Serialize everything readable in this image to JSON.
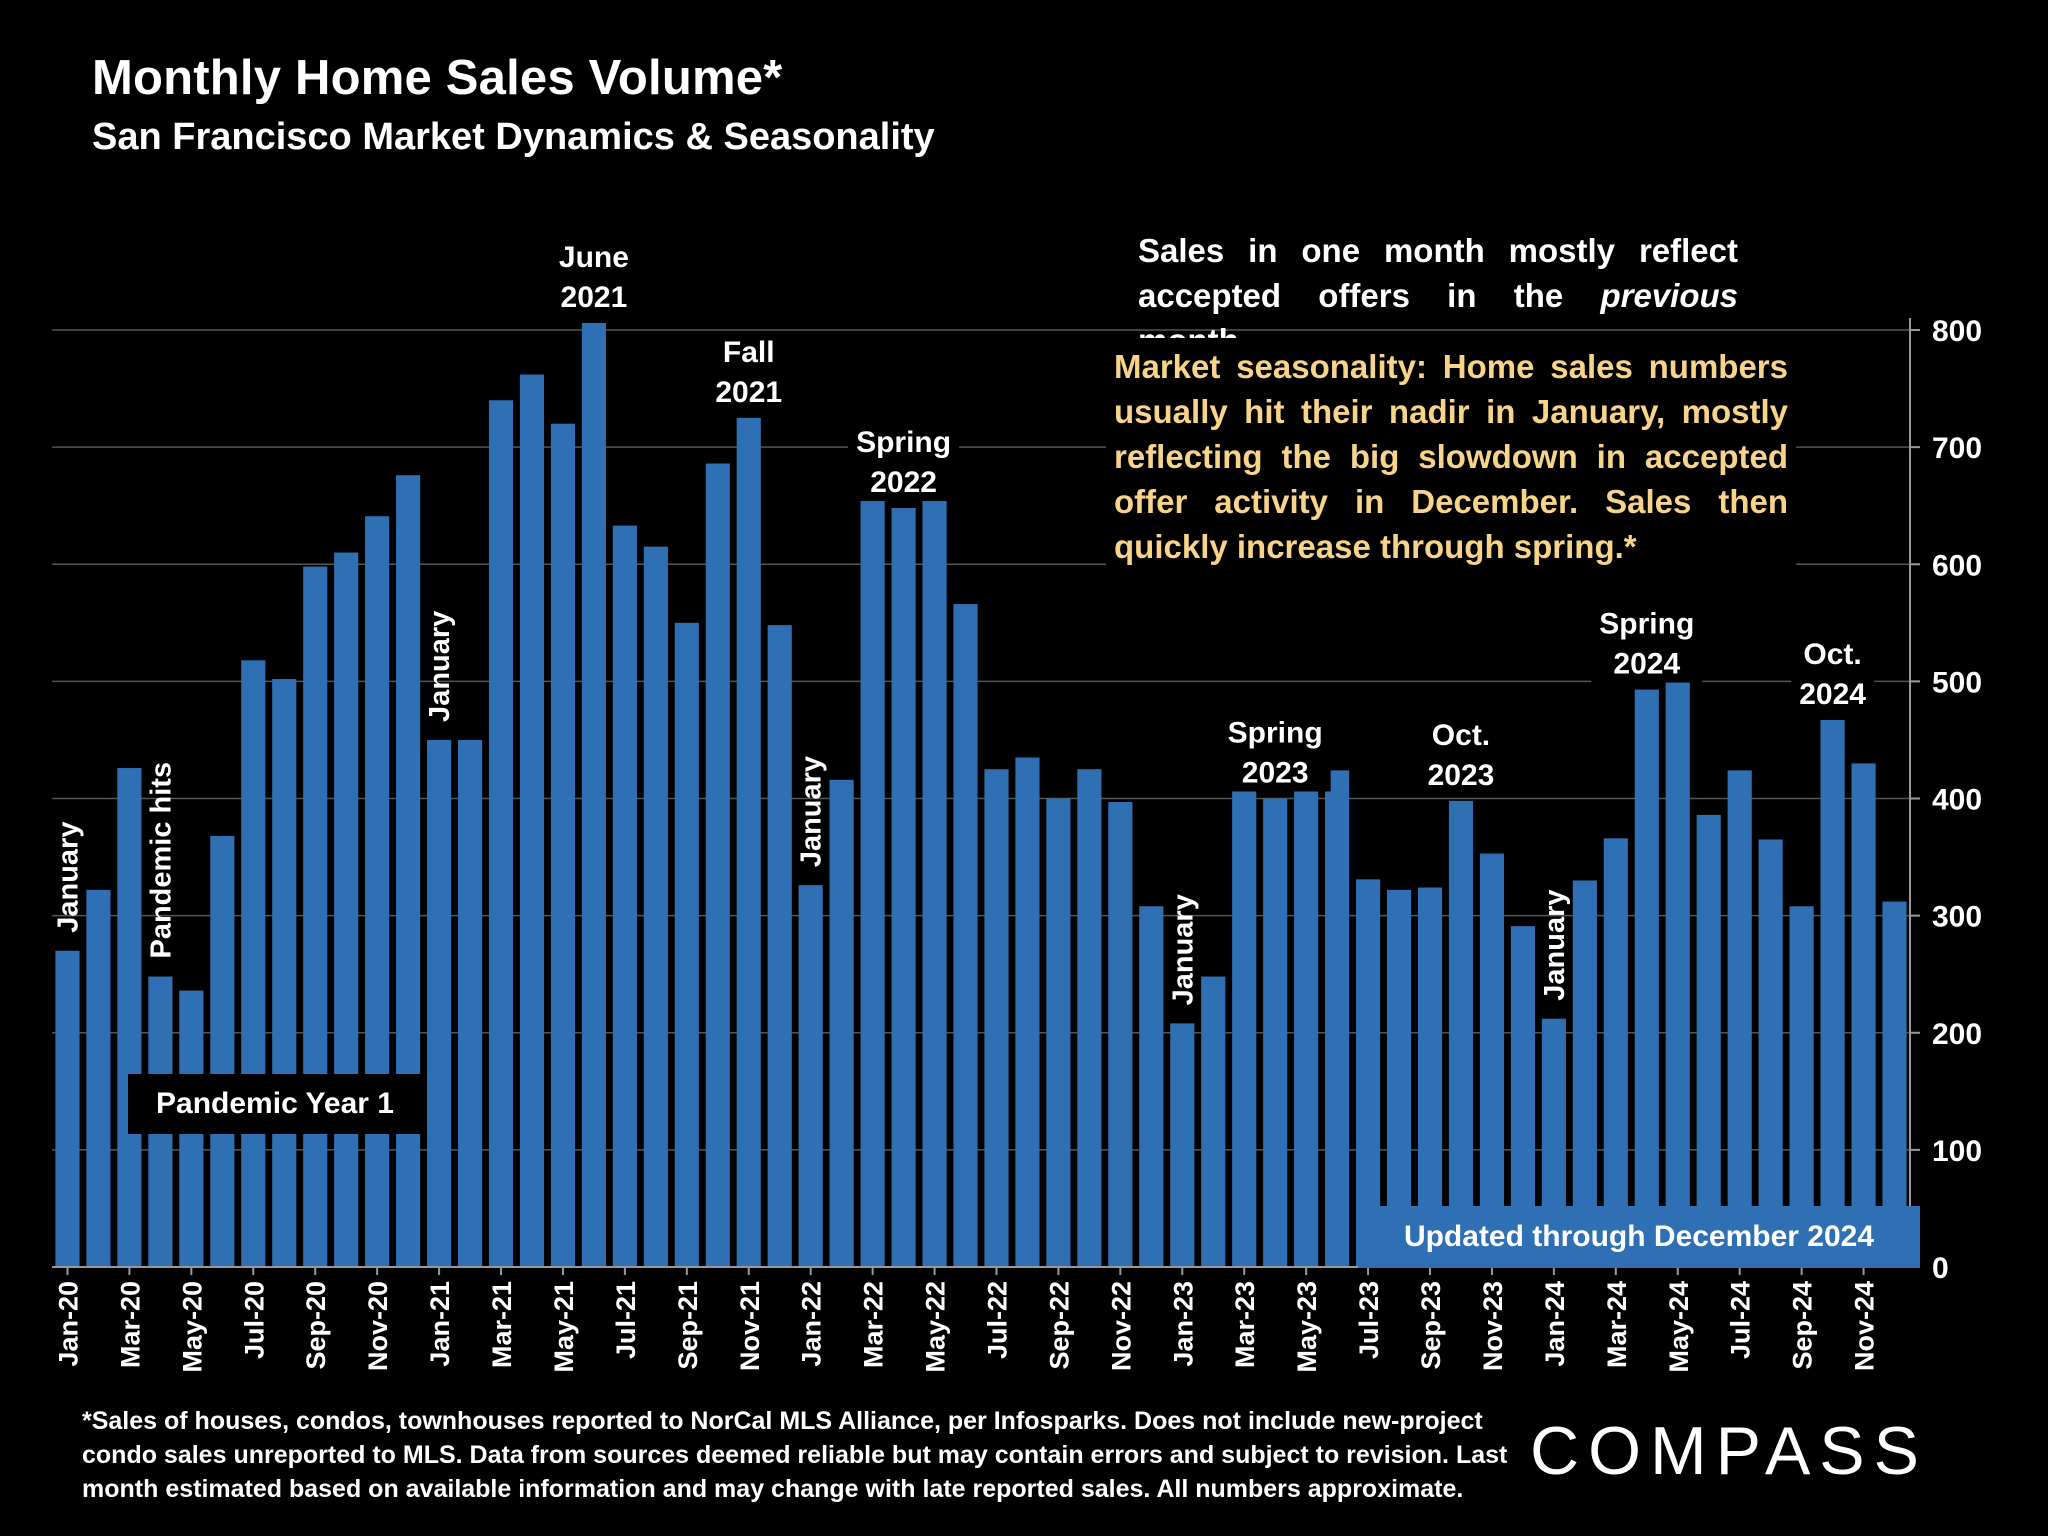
{
  "header": {
    "title": "Monthly Home Sales Volume*",
    "subtitle": "San Francisco Market Dynamics & Seasonality"
  },
  "notes": {
    "lag_pre": "Sales in one month mostly reflect accepted offers in the ",
    "lag_em": "previous",
    "lag_post": " month.",
    "seasonality": "Market seasonality: Home sales numbers usually hit their nadir in January, mostly reflecting the big slowdown in accepted offer activity in December. Sales then quickly increase through spring.*",
    "pandemic_box": "Pandemic Year 1",
    "updated_box": "Updated through December 2024"
  },
  "footnote": "*Sales of houses, condos, townhouses reported to NorCal MLS Alliance, per Infosparks. Does not include new-project condo sales unreported to MLS. Data from sources deemed reliable but may contain errors and subject to revision. Last month estimated based on available information and may change with late reported sales. All numbers approximate.",
  "brand": {
    "logo_text": "COMPASS"
  },
  "colors": {
    "bar": "#2f6fb3",
    "background": "#000000",
    "text": "#ffffff",
    "highlight": "#f7d48a",
    "grid": "#555555"
  },
  "chart_data": {
    "type": "bar",
    "title": "Monthly Home Sales Volume*",
    "ylim": [
      0,
      800
    ],
    "yticks": [
      0,
      100,
      200,
      300,
      400,
      500,
      600,
      700,
      800
    ],
    "y_axis_side": "right",
    "categories": [
      "Jan-20",
      "Feb-20",
      "Mar-20",
      "Apr-20",
      "May-20",
      "Jun-20",
      "Jul-20",
      "Aug-20",
      "Sep-20",
      "Oct-20",
      "Nov-20",
      "Dec-20",
      "Jan-21",
      "Feb-21",
      "Mar-21",
      "Apr-21",
      "May-21",
      "Jun-21",
      "Jul-21",
      "Aug-21",
      "Sep-21",
      "Oct-21",
      "Nov-21",
      "Dec-21",
      "Jan-22",
      "Feb-22",
      "Mar-22",
      "Apr-22",
      "May-22",
      "Jun-22",
      "Jul-22",
      "Aug-22",
      "Sep-22",
      "Oct-22",
      "Nov-22",
      "Dec-22",
      "Jan-23",
      "Feb-23",
      "Mar-23",
      "Apr-23",
      "May-23",
      "Jun-23",
      "Jul-23",
      "Aug-23",
      "Sep-23",
      "Oct-23",
      "Nov-23",
      "Dec-23",
      "Jan-24",
      "Feb-24",
      "Mar-24",
      "Apr-24",
      "May-24",
      "Jun-24",
      "Jul-24",
      "Aug-24",
      "Sep-24",
      "Oct-24",
      "Nov-24",
      "Dec-24"
    ],
    "values": [
      270,
      322,
      426,
      248,
      236,
      368,
      518,
      502,
      598,
      610,
      641,
      676,
      450,
      450,
      740,
      762,
      720,
      806,
      633,
      615,
      550,
      686,
      725,
      548,
      326,
      416,
      660,
      648,
      656,
      566,
      425,
      435,
      400,
      425,
      397,
      308,
      208,
      248,
      408,
      400,
      430,
      424,
      331,
      322,
      324,
      398,
      353,
      291,
      212,
      330,
      366,
      493,
      502,
      386,
      424,
      365,
      308,
      467,
      430,
      312
    ],
    "tick_labels": [
      "Jan-20",
      "Mar-20",
      "May-20",
      "Jul-20",
      "Sep-20",
      "Nov-20",
      "Jan-21",
      "Mar-21",
      "May-21",
      "Jul-21",
      "Sep-21",
      "Nov-21",
      "Jan-22",
      "Mar-22",
      "May-22",
      "Jul-22",
      "Sep-22",
      "Nov-22",
      "Jan-23",
      "Mar-23",
      "May-23",
      "Jul-23",
      "Sep-23",
      "Nov-23",
      "Jan-24",
      "Mar-24",
      "May-24",
      "Jul-24",
      "Sep-24",
      "Nov-24"
    ],
    "y_tick_labels": [
      "0",
      "100",
      "200",
      "300",
      "400",
      "500",
      "600",
      "700",
      "800"
    ],
    "annotations": [
      {
        "index": 0,
        "text": "January",
        "rotated": true
      },
      {
        "index": 3,
        "text": "Pandemic hits",
        "rotated": true
      },
      {
        "index": 12,
        "text": "January",
        "rotated": true
      },
      {
        "index": 17,
        "text": "June\n2021",
        "rotated": false
      },
      {
        "index": 22,
        "text": "Fall\n2021",
        "rotated": false
      },
      {
        "index": 24,
        "text": "January",
        "rotated": true
      },
      {
        "index": 27,
        "text": "Spring\n2022",
        "rotated": false
      },
      {
        "index": 36,
        "text": "January",
        "rotated": true
      },
      {
        "index": 39,
        "text": "Spring\n2023",
        "rotated": false
      },
      {
        "index": 45,
        "text": "Oct.\n2023",
        "rotated": false
      },
      {
        "index": 48,
        "text": "January",
        "rotated": true
      },
      {
        "index": 51,
        "text": "Spring\n2024",
        "rotated": false
      },
      {
        "index": 57,
        "text": "Oct.\n2024",
        "rotated": false
      }
    ]
  }
}
